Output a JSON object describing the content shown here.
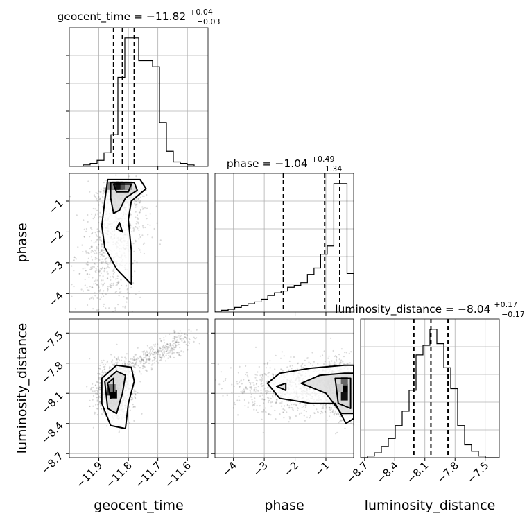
{
  "chart_data": {
    "type": "corner",
    "parameters": [
      "geocent_time",
      "phase",
      "luminosity_distance"
    ],
    "axis_labels": {
      "geocent_time": "geocent_time",
      "phase": "phase",
      "luminosity_distance": "luminosity_distance"
    },
    "titles": [
      {
        "param": "geocent_time",
        "prefix": "geocent_time = ",
        "median": "−11.82",
        "plus": "+0.04",
        "minus": "−0.03"
      },
      {
        "param": "phase",
        "prefix": "phase = ",
        "median": "−1.04",
        "plus": "+0.49",
        "minus": "−1.34"
      },
      {
        "param": "luminosity_distance",
        "prefix": "luminosity_distance = ",
        "median": "−8.04",
        "plus": "+0.17",
        "minus": "−0.17"
      }
    ],
    "ranges": {
      "geocent_time": [
        -12.0,
        -11.53
      ],
      "phase": [
        -4.6,
        -0.1
      ],
      "luminosity_distance": [
        -8.74,
        -7.36
      ]
    },
    "ticks": {
      "geocent_time": [
        {
          "value": -11.9,
          "label": "−11.9"
        },
        {
          "value": -11.8,
          "label": "−11.8"
        },
        {
          "value": -11.7,
          "label": "−11.7"
        },
        {
          "value": -11.6,
          "label": "−11.6"
        }
      ],
      "phase": [
        {
          "value": -4,
          "label": "−4"
        },
        {
          "value": -3,
          "label": "−3"
        },
        {
          "value": -2,
          "label": "−2"
        },
        {
          "value": -1,
          "label": "−1"
        }
      ],
      "luminosity_distance": [
        {
          "value": -8.7,
          "label": "−8.7"
        },
        {
          "value": -8.4,
          "label": "−8.4"
        },
        {
          "value": -8.1,
          "label": "−8.1"
        },
        {
          "value": -7.8,
          "label": "−7.8"
        },
        {
          "value": -7.5,
          "label": "−7.5"
        }
      ]
    },
    "quantiles": {
      "geocent_time": [
        -11.85,
        -11.82,
        -11.78
      ],
      "phase": [
        -2.38,
        -1.04,
        -0.55
      ],
      "luminosity_distance": [
        -8.21,
        -8.04,
        -7.87
      ]
    },
    "histograms": {
      "geocent_time": {
        "start": -12.0,
        "end": -11.53,
        "counts": [
          0,
          0,
          1,
          2,
          4,
          9,
          21,
          59,
          85,
          85,
          70,
          70,
          66,
          29,
          10,
          3,
          2,
          1,
          0,
          0
        ]
      },
      "phase": {
        "start": -4.6,
        "end": -0.1,
        "counts": [
          1,
          2,
          3,
          5,
          7,
          9,
          11,
          14,
          18,
          21,
          23,
          27,
          29,
          32,
          41,
          48,
          63,
          72,
          140,
          140,
          42
        ]
      },
      "luminosity_distance": {
        "start": -8.74,
        "end": -7.36,
        "counts": [
          0,
          1,
          3,
          7,
          12,
          20,
          29,
          42,
          64,
          70,
          80,
          71,
          56,
          43,
          20,
          8,
          4,
          1,
          0,
          0
        ]
      }
    },
    "grid": true,
    "colors": {
      "contour": "#000000",
      "points": "#555555",
      "density_dark": "#000000"
    }
  }
}
